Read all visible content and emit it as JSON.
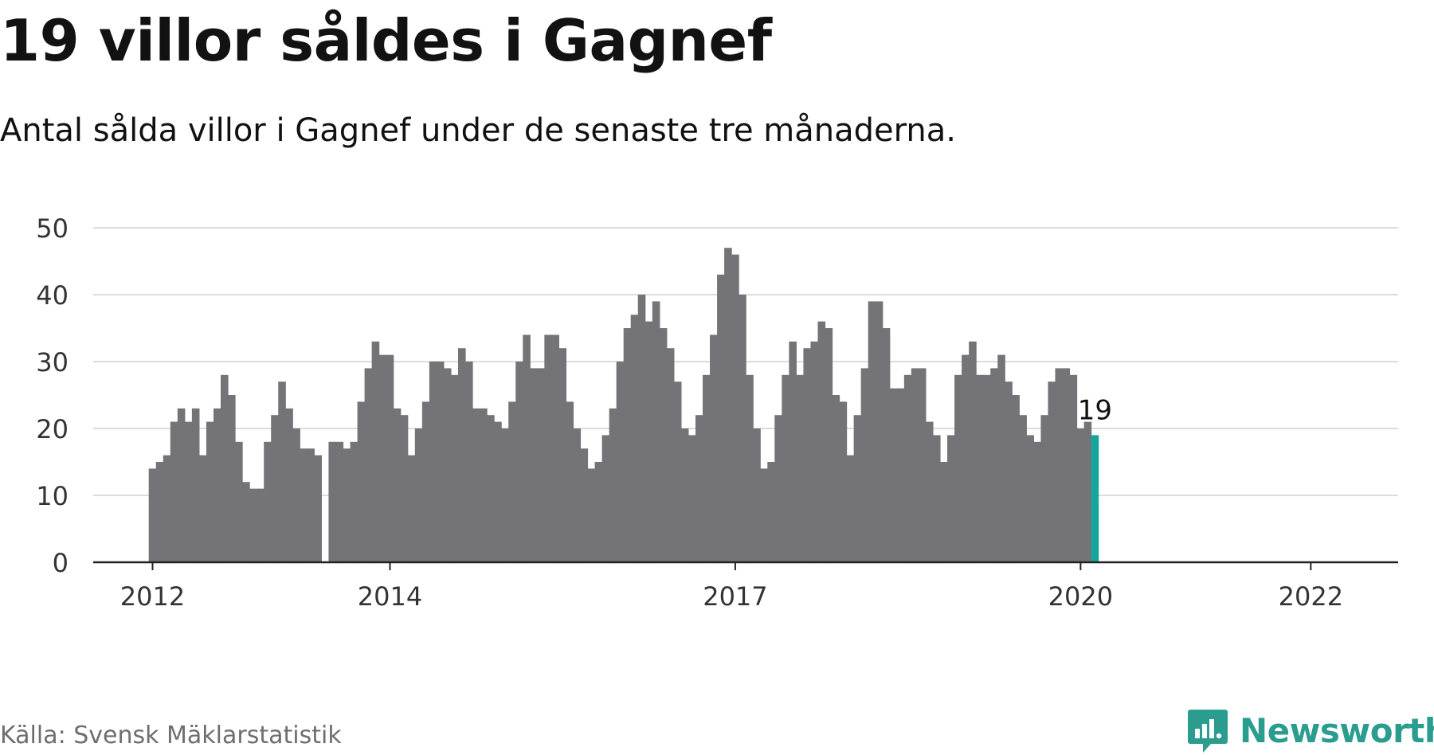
{
  "title": "19 villor såldes i Gagnef",
  "subtitle": "Antal sålda villor i Gagnef under de senaste tre månaderna.",
  "source": "Källa: Svensk Mäklarstatistik",
  "brand": {
    "name": "Newsworthy",
    "logo_icon": "newsworthy-chart-bubble-icon"
  },
  "colors": {
    "bar": "#747378",
    "highlight": "#14a69b",
    "grid": "#dcdcdc",
    "axis": "#222222",
    "brand": "#2a9d8f"
  },
  "chart_data": {
    "type": "bar",
    "title": "19 villor såldes i Gagnef",
    "subtitle": "Antal sålda villor i Gagnef under de senaste tre månaderna.",
    "xlabel": "",
    "ylabel": "",
    "ylim": [
      0,
      50
    ],
    "yticks": [
      0,
      10,
      20,
      30,
      40,
      50
    ],
    "grid": true,
    "legend": "none",
    "xtick_labels": [
      {
        "label": "2012",
        "at_index": 0
      },
      {
        "label": "2014",
        "at_index": 33
      },
      {
        "label": "2017",
        "at_index": 81
      },
      {
        "label": "2020",
        "at_index": 129
      },
      {
        "label": "2022",
        "at_index": 161
      }
    ],
    "values": [
      14,
      15,
      16,
      21,
      23,
      21,
      23,
      16,
      21,
      23,
      28,
      25,
      18,
      12,
      11,
      11,
      18,
      22,
      27,
      23,
      20,
      17,
      17,
      16,
      null,
      18,
      18,
      17,
      18,
      24,
      29,
      33,
      31,
      31,
      23,
      22,
      16,
      20,
      24,
      30,
      30,
      29,
      28,
      32,
      30,
      23,
      23,
      22,
      21,
      20,
      24,
      30,
      34,
      29,
      29,
      34,
      34,
      32,
      24,
      20,
      17,
      14,
      15,
      19,
      23,
      30,
      35,
      37,
      40,
      36,
      39,
      35,
      32,
      27,
      20,
      19,
      22,
      28,
      34,
      43,
      47,
      46,
      40,
      28,
      20,
      14,
      15,
      22,
      28,
      33,
      28,
      32,
      33,
      36,
      35,
      25,
      24,
      16,
      22,
      29,
      39,
      39,
      35,
      26,
      26,
      28,
      29,
      29,
      21,
      19,
      15,
      19,
      28,
      31,
      33,
      28,
      28,
      29,
      31,
      27,
      25,
      22,
      19,
      18,
      22,
      27,
      29,
      29,
      28,
      20,
      21,
      19
    ],
    "highlight_last": true,
    "last_label": "19"
  }
}
